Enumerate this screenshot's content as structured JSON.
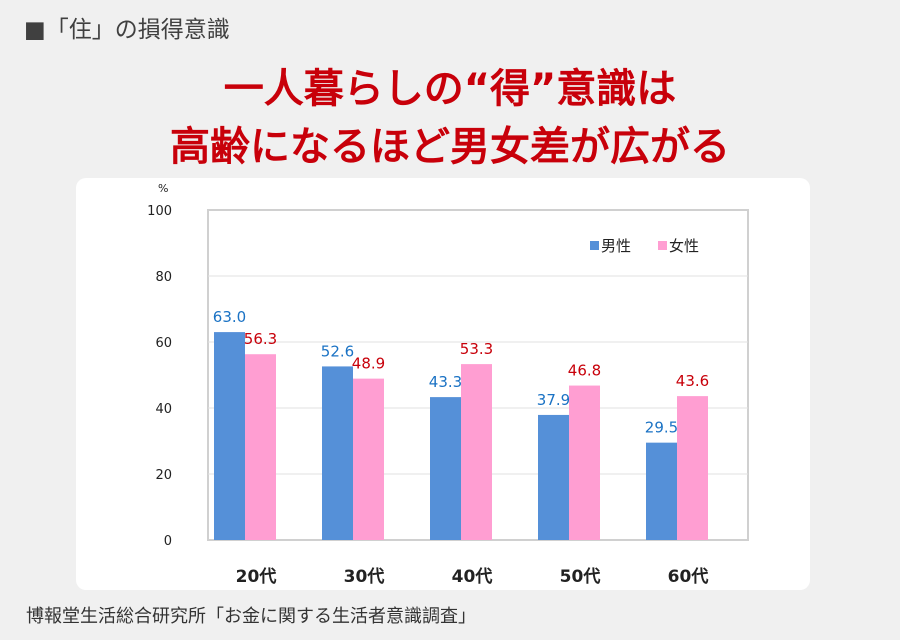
{
  "header": {
    "section": "■「住」の損得意識",
    "title_line1": "一人暮らしの“得”意識は",
    "title_line2": "高齢になるほど男女差が広がる"
  },
  "source": "博報堂生活総合研究所「お金に関する生活者意識調査」",
  "chart_data": {
    "type": "bar",
    "unit": "%",
    "categories": [
      "20代",
      "30代",
      "40代",
      "50代",
      "60代"
    ],
    "series": [
      {
        "name": "男性",
        "values": [
          63.0,
          52.6,
          43.3,
          37.9,
          29.5
        ],
        "color": "#5590d8",
        "label_color": "#1a72c4"
      },
      {
        "name": "女性",
        "values": [
          56.3,
          48.9,
          53.3,
          46.8,
          43.6
        ],
        "color": "#ff9ed2",
        "label_color": "#c8000a"
      }
    ],
    "ylim": [
      0,
      100
    ],
    "yticks": [
      0,
      20,
      40,
      60,
      80,
      100
    ],
    "grid": true,
    "legend": "top-right"
  }
}
